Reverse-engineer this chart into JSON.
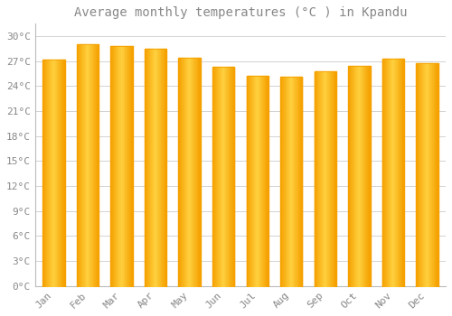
{
  "title": "Average monthly temperatures (°C ) in Kpandu",
  "months": [
    "Jan",
    "Feb",
    "Mar",
    "Apr",
    "May",
    "Jun",
    "Jul",
    "Aug",
    "Sep",
    "Oct",
    "Nov",
    "Dec"
  ],
  "values": [
    27.2,
    29.0,
    28.8,
    28.5,
    27.4,
    26.3,
    25.2,
    25.1,
    25.8,
    26.4,
    27.3,
    26.8
  ],
  "bar_color_center": "#FFD040",
  "bar_color_edge": "#F5A000",
  "background_color": "#FFFFFF",
  "plot_bg_color": "#FFFFFF",
  "grid_color": "#CCCCCC",
  "yticks": [
    0,
    3,
    6,
    9,
    12,
    15,
    18,
    21,
    24,
    27,
    30
  ],
  "ylim": [
    0,
    31.5
  ],
  "title_fontsize": 10,
  "tick_fontsize": 8,
  "font_color": "#888888",
  "bar_width": 0.65
}
